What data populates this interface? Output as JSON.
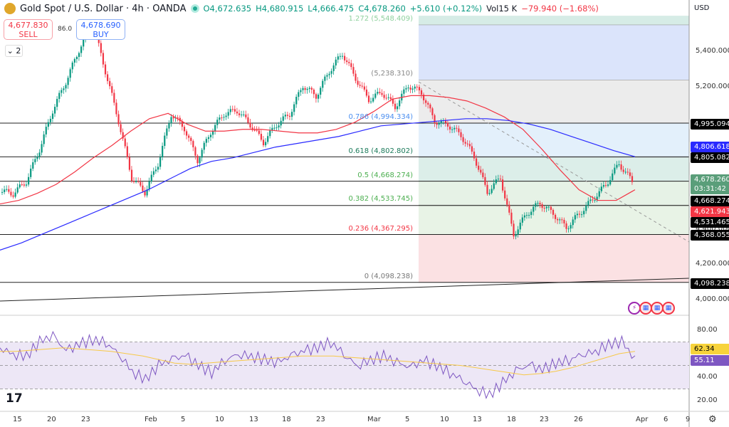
{
  "header": {
    "symbol": "Gold Spot / U.S. Dollar · 4h · OANDA",
    "open": "O4,672.635",
    "high": "H4,680.915",
    "low": "L4,666.475",
    "close": "C4,678.260",
    "change": "+5.610 (+0.12%)",
    "volume_label": "Vol",
    "volume": "15 K",
    "vol_change": "−79.940 (−1.68%)"
  },
  "trade": {
    "sell_price": "4,677.830",
    "sell_label": "SELL",
    "spread": "86.0",
    "buy_price": "4,678.690",
    "buy_label": "BUY",
    "collapse_count": "2"
  },
  "axis": {
    "currency": "USD",
    "price_ticks": [
      "5,400.000",
      "5,200.000",
      "4,400.000",
      "4,200.000",
      "4,000.000"
    ],
    "rsi_ticks": [
      "80.00",
      "40.00",
      "20.00"
    ],
    "time_ticks": [
      "15",
      "20",
      "23",
      "Feb",
      "5",
      "10",
      "13",
      "18",
      "23",
      "Mar",
      "5",
      "10",
      "13",
      "18",
      "23",
      "26",
      "Apr",
      "6",
      "9"
    ]
  },
  "price_tags": [
    {
      "value": "4,995.094",
      "color": "#000000"
    },
    {
      "value": "4,806.618",
      "color": "#2a2aff"
    },
    {
      "value": "4,805.082",
      "color": "#000000"
    },
    {
      "value": "4,678.260",
      "sub": "03:31:42",
      "color": "#5a9e7a"
    },
    {
      "value": "4,668.274",
      "color": "#000000"
    },
    {
      "value": "4,621.943",
      "color": "#f23645"
    },
    {
      "value": "4,531.465",
      "color": "#000000"
    },
    {
      "value": "4,368.055",
      "color": "#000000"
    },
    {
      "value": "4,098.238",
      "color": "#000000"
    }
  ],
  "rsi_tags": [
    {
      "value": "62.34",
      "color": "#f7d33b"
    },
    {
      "value": "55.11",
      "color": "#7e57c2"
    }
  ],
  "fib_levels": [
    {
      "label": "1.272 (5,548.409)",
      "price": 5548.409,
      "color": "#8fd19e"
    },
    {
      "label": "(5,238.310)",
      "price": 5238.31,
      "color": "#888888"
    },
    {
      "label": "0.786 (4,994.334)",
      "price": 4994.334,
      "color": "#4c8ff0"
    },
    {
      "label": "0.618 (4,802.802)",
      "price": 4802.802,
      "color": "#1b7a5a"
    },
    {
      "label": "0.5 (4,668.274)",
      "price": 4668.274,
      "color": "#4caf50"
    },
    {
      "label": "0.382 (4,533.745)",
      "price": 4533.745,
      "color": "#4caf50"
    },
    {
      "label": "0.236 (4,367.295)",
      "price": 4367.295,
      "color": "#f23645"
    },
    {
      "label": "0 (4,098.238)",
      "price": 4098.238,
      "color": "#777777"
    }
  ],
  "horizontal_lines": [
    4995.094,
    4805.082,
    4668.274,
    4531.465,
    4368.055,
    4098.238
  ],
  "chart_data": {
    "type": "candlestick",
    "close_path": [
      4614,
      4598,
      4667,
      4847,
      5067,
      5228,
      5408,
      5568,
      5288,
      5007,
      4687,
      4606,
      4767,
      5047,
      4967,
      4787,
      4947,
      5047,
      5067,
      4987,
      4887,
      4987,
      5047,
      5208,
      5148,
      5288,
      5388,
      5248,
      5127,
      5168,
      5087,
      5208,
      5168,
      5007,
      4987,
      4927,
      4807,
      4606,
      4687,
      4366,
      4486,
      4546,
      4486,
      4406,
      4486,
      4566,
      4647,
      4767,
      4667
    ],
    "ma_red": [
      4540,
      4560,
      4600,
      4650,
      4720,
      4800,
      4870,
      4950,
      5020,
      5050,
      4990,
      4950,
      4950,
      4960,
      4960,
      4950,
      4940,
      4940,
      4960,
      5000,
      5060,
      5130,
      5150,
      5150,
      5140,
      5120,
      5080,
      5030,
      4960,
      4850,
      4730,
      4620,
      4560,
      4560,
      4620
    ],
    "ma_blue": [
      4280,
      4320,
      4370,
      4420,
      4470,
      4520,
      4570,
      4620,
      4680,
      4740,
      4780,
      4800,
      4830,
      4860,
      4880,
      4900,
      4920,
      4950,
      4980,
      4990,
      5000,
      5010,
      5020,
      5020,
      5010,
      4990,
      4960,
      4920,
      4880,
      4840,
      4806
    ],
    "rsi": [
      65,
      60,
      58,
      70,
      75,
      62,
      68,
      72,
      70,
      60,
      45,
      38,
      50,
      55,
      58,
      50,
      44,
      55,
      60,
      58,
      55,
      52,
      58,
      62,
      65,
      70,
      60,
      50,
      55,
      58,
      52,
      48,
      54,
      50,
      44,
      38,
      30,
      25,
      35,
      45,
      50,
      46,
      52,
      55,
      60,
      62,
      68,
      70,
      55
    ],
    "rsi_ma": [
      62,
      62,
      63,
      64,
      65,
      64,
      63,
      62,
      60,
      58,
      55,
      52,
      51,
      52,
      53,
      54,
      55,
      56,
      57,
      58,
      58,
      58,
      57,
      56,
      55,
      54,
      53,
      52,
      51,
      50,
      48,
      46,
      44,
      42,
      43,
      45,
      48,
      52,
      56,
      60,
      62
    ],
    "ylim": [
      3900,
      5600
    ],
    "rsi_ylim": [
      10,
      90
    ],
    "rsi_bands": [
      30,
      50,
      70
    ]
  },
  "colors": {
    "up": "#089981",
    "down": "#f23645",
    "ma_red": "#f23645",
    "ma_blue": "#2a2aff",
    "rsi": "#7e57c2",
    "rsi_ma": "#f7c948"
  },
  "events": [
    "flash-icon",
    "us-flag-icon",
    "us-flag-icon",
    "us-flag-icon"
  ],
  "watermark": "TV"
}
